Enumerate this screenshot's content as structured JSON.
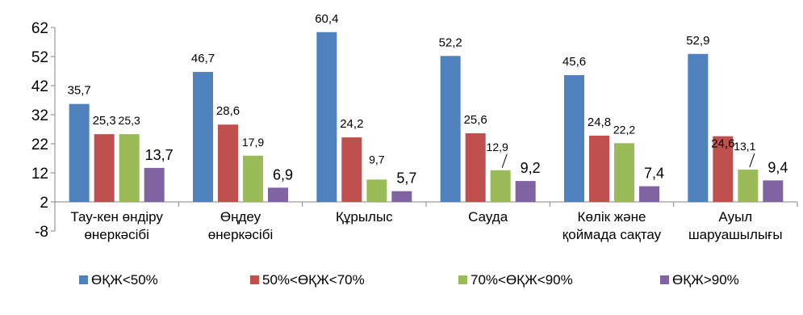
{
  "chart_data": {
    "type": "bar",
    "categories": [
      [
        "Тау-кен өндіру",
        "өнеркәсібі"
      ],
      [
        "Өңдеу",
        "өнеркәсібі"
      ],
      [
        "Құрылыс"
      ],
      [
        "Сауда"
      ],
      [
        "Көлік және",
        "қоймада сақтау"
      ],
      [
        "Ауыл",
        "шаруашылығы"
      ]
    ],
    "series": [
      {
        "name": "ӨҚЖ<50%",
        "color": "#4F81BD",
        "values": [
          35.7,
          46.7,
          60.4,
          52.2,
          45.6,
          52.9
        ],
        "labels": [
          "35,7",
          "46,7",
          "60,4",
          "52,2",
          "45,6",
          "52,9"
        ]
      },
      {
        "name": "50%<ӨҚЖ<70%",
        "color": "#C0504D",
        "values": [
          25.3,
          28.6,
          24.2,
          25.6,
          24.8,
          24.6
        ],
        "labels": [
          "25,3",
          "28,6",
          "24,2",
          "25,6",
          "24,8",
          "24,6"
        ]
      },
      {
        "name": "70%<ӨҚЖ<90%",
        "color": "#9BBB59",
        "values": [
          25.3,
          17.9,
          9.7,
          12.9,
          22.2,
          13.1
        ],
        "labels": [
          "25,3",
          "17,9",
          "9,7",
          "12,9",
          "22,2",
          "13,1"
        ]
      },
      {
        "name": "ӨҚЖ>90%",
        "color": "#8064A2",
        "values": [
          13.7,
          6.9,
          5.7,
          9.2,
          7.4,
          9.4
        ],
        "labels": [
          "13,7",
          "6,9",
          "5,7",
          "9,2",
          "7,4",
          "9,4"
        ]
      }
    ],
    "y_ticks": [
      "-8",
      "2",
      "12",
      "22",
      "32",
      "42",
      "52",
      "62"
    ],
    "ylim": [
      -8,
      62
    ],
    "baseline": 2,
    "grid": false,
    "legend": "bottom"
  }
}
